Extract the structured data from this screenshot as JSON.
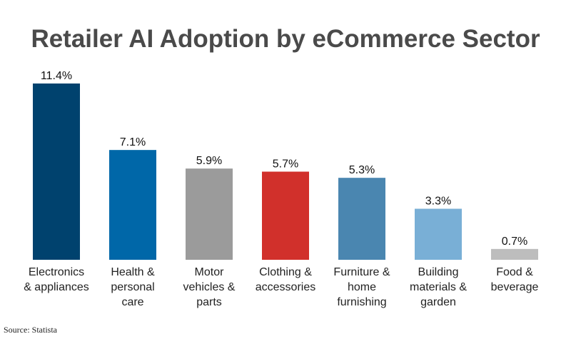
{
  "chart_data": {
    "type": "bar",
    "title": "Retailer AI Adoption by eCommerce Sector",
    "categories": [
      [
        "Electronics",
        "& appliances"
      ],
      [
        "Health &",
        "personal",
        "care"
      ],
      [
        "Motor",
        "vehicles &",
        "parts"
      ],
      [
        "Clothing &",
        "accessories"
      ],
      [
        "Furniture &",
        "home",
        "furnishing"
      ],
      [
        "Building",
        "materials &",
        "garden"
      ],
      [
        "Food &",
        "beverage"
      ]
    ],
    "values": [
      11.4,
      7.1,
      5.9,
      5.7,
      5.3,
      3.3,
      0.7
    ],
    "value_labels": [
      "11.4%",
      "7.1%",
      "5.9%",
      "5.7%",
      "5.3%",
      "3.3%",
      "0.7%"
    ],
    "colors": [
      "#00426e",
      "#0067a8",
      "#9b9b9b",
      "#d1302b",
      "#4a86b0",
      "#79afd6",
      "#bdbdbd"
    ],
    "ylim": [
      0,
      11.4
    ],
    "grid": false,
    "legend": "none"
  },
  "source": "Source: Statista"
}
